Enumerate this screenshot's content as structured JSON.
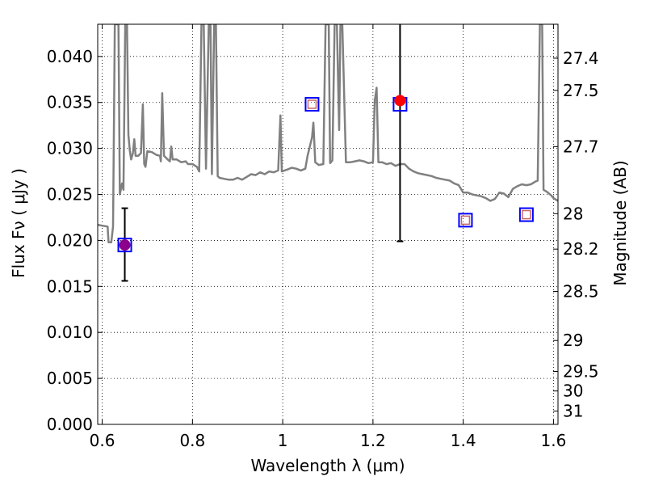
{
  "chart_data": {
    "type": "scatter",
    "title": "",
    "xlabel": "Wavelength  λ (μm)",
    "ylabel": "Flux  Fν ( μJy )",
    "ylabel_right": "Magnitude (AB)",
    "xlim": [
      0.59,
      1.61
    ],
    "ylim": [
      0.0,
      0.0435
    ],
    "grid": true,
    "x_ticks": [
      {
        "value": 0.6,
        "label": "0.6"
      },
      {
        "value": 0.8,
        "label": "0.8"
      },
      {
        "value": 1.0,
        "label": "1"
      },
      {
        "value": 1.2,
        "label": "1.2"
      },
      {
        "value": 1.4,
        "label": "1.4"
      },
      {
        "value": 1.6,
        "label": "1.6"
      }
    ],
    "y_ticks": [
      {
        "value": 0.0,
        "label": "0.000"
      },
      {
        "value": 0.005,
        "label": "0.005"
      },
      {
        "value": 0.01,
        "label": "0.010"
      },
      {
        "value": 0.015,
        "label": "0.015"
      },
      {
        "value": 0.02,
        "label": "0.020"
      },
      {
        "value": 0.025,
        "label": "0.025"
      },
      {
        "value": 0.03,
        "label": "0.030"
      },
      {
        "value": 0.035,
        "label": "0.035"
      },
      {
        "value": 0.04,
        "label": "0.040"
      }
    ],
    "right_ticks": [
      {
        "mag": 27.4,
        "label": "27.4"
      },
      {
        "mag": 27.5,
        "label": "27.5"
      },
      {
        "mag": 27.7,
        "label": "27.7"
      },
      {
        "mag": 28.0,
        "label": "28"
      },
      {
        "mag": 28.2,
        "label": "28.2"
      },
      {
        "mag": 28.5,
        "label": "28.5"
      },
      {
        "mag": 29.0,
        "label": "29"
      },
      {
        "mag": 29.5,
        "label": "29.5"
      },
      {
        "mag": 30.0,
        "label": "30"
      },
      {
        "mag": 31.0,
        "label": "31"
      }
    ],
    "sed_model": {
      "color": "#808080",
      "points": [
        [
          0.59,
          0.0217
        ],
        [
          0.6,
          0.0216
        ],
        [
          0.612,
          0.0215
        ],
        [
          0.614,
          0.0198
        ],
        [
          0.62,
          0.0198
        ],
        [
          0.624,
          0.0215
        ],
        [
          0.628,
          0.0435
        ],
        [
          0.636,
          0.0435
        ],
        [
          0.639,
          0.025
        ],
        [
          0.644,
          0.0262
        ],
        [
          0.647,
          0.0255
        ],
        [
          0.651,
          0.0435
        ],
        [
          0.655,
          0.0435
        ],
        [
          0.658,
          0.0315
        ],
        [
          0.661,
          0.0298
        ],
        [
          0.664,
          0.0288
        ],
        [
          0.668,
          0.0295
        ],
        [
          0.671,
          0.031
        ],
        [
          0.674,
          0.0292
        ],
        [
          0.68,
          0.0292
        ],
        [
          0.686,
          0.0295
        ],
        [
          0.69,
          0.0348
        ],
        [
          0.693,
          0.0283
        ],
        [
          0.696,
          0.028
        ],
        [
          0.7,
          0.0297
        ],
        [
          0.71,
          0.0296
        ],
        [
          0.72,
          0.0293
        ],
        [
          0.728,
          0.0292
        ],
        [
          0.73,
          0.0286
        ],
        [
          0.733,
          0.036
        ],
        [
          0.737,
          0.0292
        ],
        [
          0.745,
          0.0288
        ],
        [
          0.75,
          0.0286
        ],
        [
          0.753,
          0.0302
        ],
        [
          0.756,
          0.0288
        ],
        [
          0.765,
          0.0288
        ],
        [
          0.775,
          0.0285
        ],
        [
          0.785,
          0.0286
        ],
        [
          0.79,
          0.0283
        ],
        [
          0.8,
          0.0283
        ],
        [
          0.81,
          0.028
        ],
        [
          0.815,
          0.0275
        ],
        [
          0.82,
          0.0435
        ],
        [
          0.825,
          0.0435
        ],
        [
          0.83,
          0.0278
        ],
        [
          0.836,
          0.0435
        ],
        [
          0.84,
          0.0435
        ],
        [
          0.843,
          0.0272
        ],
        [
          0.848,
          0.0435
        ],
        [
          0.852,
          0.0435
        ],
        [
          0.856,
          0.027
        ],
        [
          0.86,
          0.0268
        ],
        [
          0.87,
          0.0267
        ],
        [
          0.88,
          0.0266
        ],
        [
          0.89,
          0.0266
        ],
        [
          0.9,
          0.0268
        ],
        [
          0.91,
          0.0266
        ],
        [
          0.92,
          0.0269
        ],
        [
          0.93,
          0.0272
        ],
        [
          0.94,
          0.0271
        ],
        [
          0.95,
          0.0274
        ],
        [
          0.96,
          0.0272
        ],
        [
          0.97,
          0.0275
        ],
        [
          0.98,
          0.0274
        ],
        [
          0.99,
          0.0276
        ],
        [
          0.995,
          0.0336
        ],
        [
          0.998,
          0.0275
        ],
        [
          1.01,
          0.0277
        ],
        [
          1.02,
          0.0279
        ],
        [
          1.03,
          0.0278
        ],
        [
          1.04,
          0.0276
        ],
        [
          1.05,
          0.0278
        ],
        [
          1.055,
          0.0292
        ],
        [
          1.065,
          0.0312
        ],
        [
          1.068,
          0.0328
        ],
        [
          1.072,
          0.0285
        ],
        [
          1.08,
          0.0282
        ],
        [
          1.09,
          0.0283
        ],
        [
          1.095,
          0.0435
        ],
        [
          1.102,
          0.0435
        ],
        [
          1.105,
          0.0284
        ],
        [
          1.11,
          0.0287
        ],
        [
          1.115,
          0.0435
        ],
        [
          1.12,
          0.0435
        ],
        [
          1.125,
          0.032
        ],
        [
          1.128,
          0.0435
        ],
        [
          1.132,
          0.0435
        ],
        [
          1.14,
          0.0285
        ],
        [
          1.15,
          0.0285
        ],
        [
          1.16,
          0.0286
        ],
        [
          1.17,
          0.0287
        ],
        [
          1.18,
          0.0286
        ],
        [
          1.19,
          0.0284
        ],
        [
          1.2,
          0.0285
        ],
        [
          1.204,
          0.0352
        ],
        [
          1.208,
          0.0366
        ],
        [
          1.212,
          0.0285
        ],
        [
          1.22,
          0.0285
        ],
        [
          1.23,
          0.0283
        ],
        [
          1.24,
          0.0284
        ],
        [
          1.25,
          0.0281
        ],
        [
          1.26,
          0.0283
        ],
        [
          1.27,
          0.0283
        ],
        [
          1.28,
          0.0278
        ],
        [
          1.29,
          0.0275
        ],
        [
          1.3,
          0.0273
        ],
        [
          1.31,
          0.0272
        ],
        [
          1.32,
          0.0271
        ],
        [
          1.33,
          0.027
        ],
        [
          1.34,
          0.0268
        ],
        [
          1.35,
          0.0267
        ],
        [
          1.36,
          0.0266
        ],
        [
          1.37,
          0.0265
        ],
        [
          1.38,
          0.0262
        ],
        [
          1.39,
          0.026
        ],
        [
          1.4,
          0.0252
        ],
        [
          1.41,
          0.0252
        ],
        [
          1.42,
          0.025
        ],
        [
          1.43,
          0.0249
        ],
        [
          1.44,
          0.0248
        ],
        [
          1.45,
          0.0246
        ],
        [
          1.46,
          0.0243
        ],
        [
          1.47,
          0.0245
        ],
        [
          1.48,
          0.0252
        ],
        [
          1.49,
          0.0251
        ],
        [
          1.5,
          0.0247
        ],
        [
          1.51,
          0.0256
        ],
        [
          1.52,
          0.0259
        ],
        [
          1.53,
          0.0261
        ],
        [
          1.54,
          0.026
        ],
        [
          1.55,
          0.0261
        ],
        [
          1.56,
          0.0264
        ],
        [
          1.565,
          0.0265
        ],
        [
          1.57,
          0.0435
        ],
        [
          1.575,
          0.0435
        ],
        [
          1.578,
          0.0255
        ],
        [
          1.585,
          0.0253
        ],
        [
          1.595,
          0.0249
        ],
        [
          1.6,
          0.0246
        ],
        [
          1.61,
          0.0243
        ]
      ]
    },
    "model_photometry": [
      {
        "x": 0.65,
        "y": 0.0195
      },
      {
        "x": 1.065,
        "y": 0.0348
      },
      {
        "x": 1.26,
        "y": 0.0348
      },
      {
        "x": 1.405,
        "y": 0.0222
      },
      {
        "x": 1.54,
        "y": 0.0228
      }
    ],
    "upper_limits": [
      {
        "x": 1.065,
        "y": 0.0348
      },
      {
        "x": 1.405,
        "y": 0.0222
      },
      {
        "x": 1.54,
        "y": 0.0228
      }
    ],
    "detections": [
      {
        "x": 0.65,
        "y": 0.0195,
        "y_low": 0.0156,
        "y_high": 0.0235,
        "color": "#8b008b"
      },
      {
        "x": 1.26,
        "y": 0.0352,
        "y_low": 0.0199,
        "y_high": 0.0435,
        "color": "#ff0000"
      }
    ],
    "colors": {
      "model_box": "#0000ff",
      "upper_limit_box": "#cc6666",
      "error_bar": "#000000"
    }
  }
}
